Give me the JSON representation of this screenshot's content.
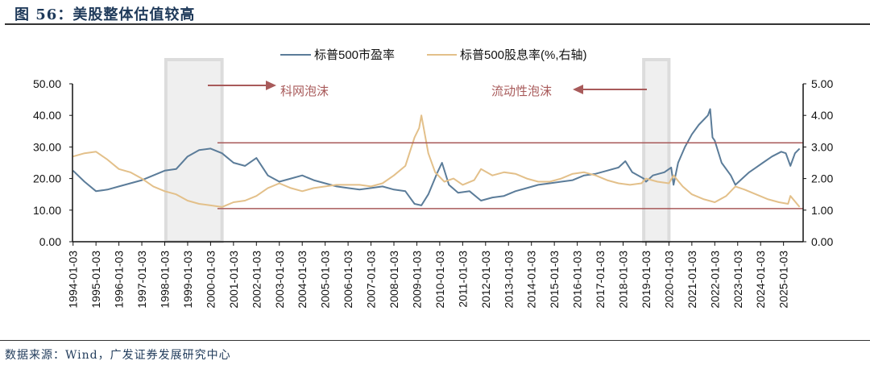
{
  "title": "图 56：美股整体估值较高",
  "source": "数据来源：Wind，广发证券发展研究中心",
  "chart_data": {
    "type": "line",
    "title": "图 56：美股整体估值较高",
    "legend_position": "top",
    "grid": false,
    "x_tick_labels": [
      "1994-01-03",
      "1995-01-03",
      "1996-01-03",
      "1997-01-03",
      "1998-01-03",
      "1999-01-03",
      "2000-01-03",
      "2001-01-03",
      "2002-01-03",
      "2003-01-03",
      "2004-01-03",
      "2005-01-03",
      "2006-01-03",
      "2007-01-03",
      "2008-01-03",
      "2009-01-03",
      "2010-01-03",
      "2011-01-03",
      "2012-01-03",
      "2013-01-03",
      "2014-01-03",
      "2015-01-03",
      "2016-01-03",
      "2017-01-03",
      "2018-01-03",
      "2019-01-03",
      "2020-01-03",
      "2021-01-03",
      "2022-01-03",
      "2023-01-03",
      "2024-01-03",
      "2025-01-03"
    ],
    "y_left": {
      "ylim": [
        0,
        50
      ],
      "ticks": [
        "0.00",
        "10.00",
        "20.00",
        "30.00",
        "40.00",
        "50.00"
      ]
    },
    "y_right": {
      "ylim": [
        0,
        5
      ],
      "ticks": [
        "0.00",
        "1.00",
        "2.00",
        "3.00",
        "4.00",
        "5.00"
      ]
    },
    "series": [
      {
        "name": "标普500市盈率",
        "axis": "left",
        "color": "#5b7c99",
        "x": [
          1994.0,
          1994.5,
          1995.0,
          1995.5,
          1996.0,
          1996.5,
          1997.0,
          1997.5,
          1998.0,
          1998.5,
          1999.0,
          1999.5,
          2000.0,
          2000.5,
          2001.0,
          2001.5,
          2002.0,
          2002.5,
          2003.0,
          2003.5,
          2004.0,
          2004.5,
          2005.0,
          2005.5,
          2006.0,
          2006.5,
          2007.0,
          2007.5,
          2008.0,
          2008.5,
          2008.9,
          2009.2,
          2009.5,
          2009.9,
          2010.1,
          2010.4,
          2010.8,
          2011.3,
          2011.8,
          2012.3,
          2012.8,
          2013.3,
          2013.8,
          2014.3,
          2014.8,
          2015.3,
          2015.8,
          2016.3,
          2016.8,
          2017.3,
          2017.8,
          2018.1,
          2018.4,
          2018.9,
          2019.0,
          2019.3,
          2019.8,
          2020.1,
          2020.2,
          2020.4,
          2020.7,
          2021.0,
          2021.3,
          2021.7,
          2021.8,
          2021.9,
          2022.0,
          2022.3,
          2022.7,
          2022.9,
          2023.2,
          2023.5,
          2023.8,
          2024.1,
          2024.5,
          2024.9,
          2025.1,
          2025.3,
          2025.5,
          2025.7
        ],
        "values": [
          22.5,
          19,
          16,
          16.5,
          17.5,
          18.5,
          19.5,
          21,
          22.5,
          23,
          27,
          29,
          29.5,
          28,
          25,
          24,
          26.5,
          21,
          19,
          20,
          21,
          19.5,
          18.5,
          17.5,
          17,
          16.5,
          17,
          17.5,
          16.5,
          16,
          12,
          11.5,
          15,
          22,
          25,
          18,
          15.5,
          16,
          13,
          14,
          14.5,
          16,
          17,
          18,
          18.5,
          19,
          19.5,
          21,
          21.5,
          22.5,
          23.5,
          25.5,
          22,
          20,
          19,
          21,
          22,
          23.5,
          18,
          25,
          30,
          34,
          37,
          40,
          42,
          33,
          32,
          25,
          21,
          18,
          20,
          22,
          23.5,
          25,
          27,
          28.5,
          28,
          24,
          28,
          29.5
        ]
      },
      {
        "name": "标普500股息率(%,右轴)",
        "axis": "right",
        "color": "#e3c08a",
        "x": [
          1994.0,
          1994.5,
          1995.0,
          1995.5,
          1996.0,
          1996.5,
          1997.0,
          1997.5,
          1998.0,
          1998.5,
          1999.0,
          1999.5,
          2000.0,
          2000.5,
          2001.0,
          2001.5,
          2002.0,
          2002.5,
          2003.0,
          2003.5,
          2004.0,
          2004.5,
          2005.0,
          2005.5,
          2006.0,
          2006.5,
          2007.0,
          2007.5,
          2008.0,
          2008.5,
          2008.9,
          2009.1,
          2009.2,
          2009.5,
          2009.8,
          2010.2,
          2010.6,
          2011.0,
          2011.5,
          2011.8,
          2012.3,
          2012.8,
          2013.3,
          2013.8,
          2014.3,
          2014.8,
          2015.3,
          2015.8,
          2016.3,
          2016.8,
          2017.3,
          2017.8,
          2018.3,
          2018.8,
          2019.0,
          2019.5,
          2020.0,
          2020.2,
          2020.6,
          2021.0,
          2021.5,
          2022.0,
          2022.5,
          2022.9,
          2023.3,
          2023.8,
          2024.3,
          2024.8,
          2025.2,
          2025.3,
          2025.7
        ],
        "values": [
          2.7,
          2.8,
          2.85,
          2.6,
          2.3,
          2.2,
          2.0,
          1.75,
          1.6,
          1.5,
          1.3,
          1.2,
          1.15,
          1.1,
          1.25,
          1.3,
          1.45,
          1.7,
          1.85,
          1.7,
          1.6,
          1.7,
          1.75,
          1.8,
          1.8,
          1.8,
          1.75,
          1.85,
          2.1,
          2.4,
          3.3,
          3.6,
          4.0,
          2.8,
          2.2,
          1.9,
          2.0,
          1.8,
          1.95,
          2.3,
          2.1,
          2.2,
          2.15,
          2.0,
          1.9,
          1.9,
          2.0,
          2.15,
          2.2,
          2.1,
          1.95,
          1.85,
          1.8,
          1.85,
          2.0,
          1.9,
          1.85,
          2.1,
          1.75,
          1.5,
          1.35,
          1.25,
          1.45,
          1.75,
          1.65,
          1.5,
          1.35,
          1.25,
          1.2,
          1.45,
          1.1
        ]
      }
    ],
    "reference_lines": [
      {
        "axis": "left",
        "value": 31.3,
        "color": "#a85a5a"
      },
      {
        "axis": "left",
        "value": 10.5,
        "color": "#a85a5a"
      }
    ],
    "shaded_periods": [
      {
        "from": 1998.05,
        "to": 2000.5
      },
      {
        "from": 2018.9,
        "to": 2020.0
      }
    ],
    "annotations": [
      {
        "text": "科网泡沫",
        "arrow": "right",
        "color": "#a85a5a"
      },
      {
        "text": "流动性泡沫",
        "arrow": "left",
        "color": "#a85a5a"
      }
    ]
  }
}
